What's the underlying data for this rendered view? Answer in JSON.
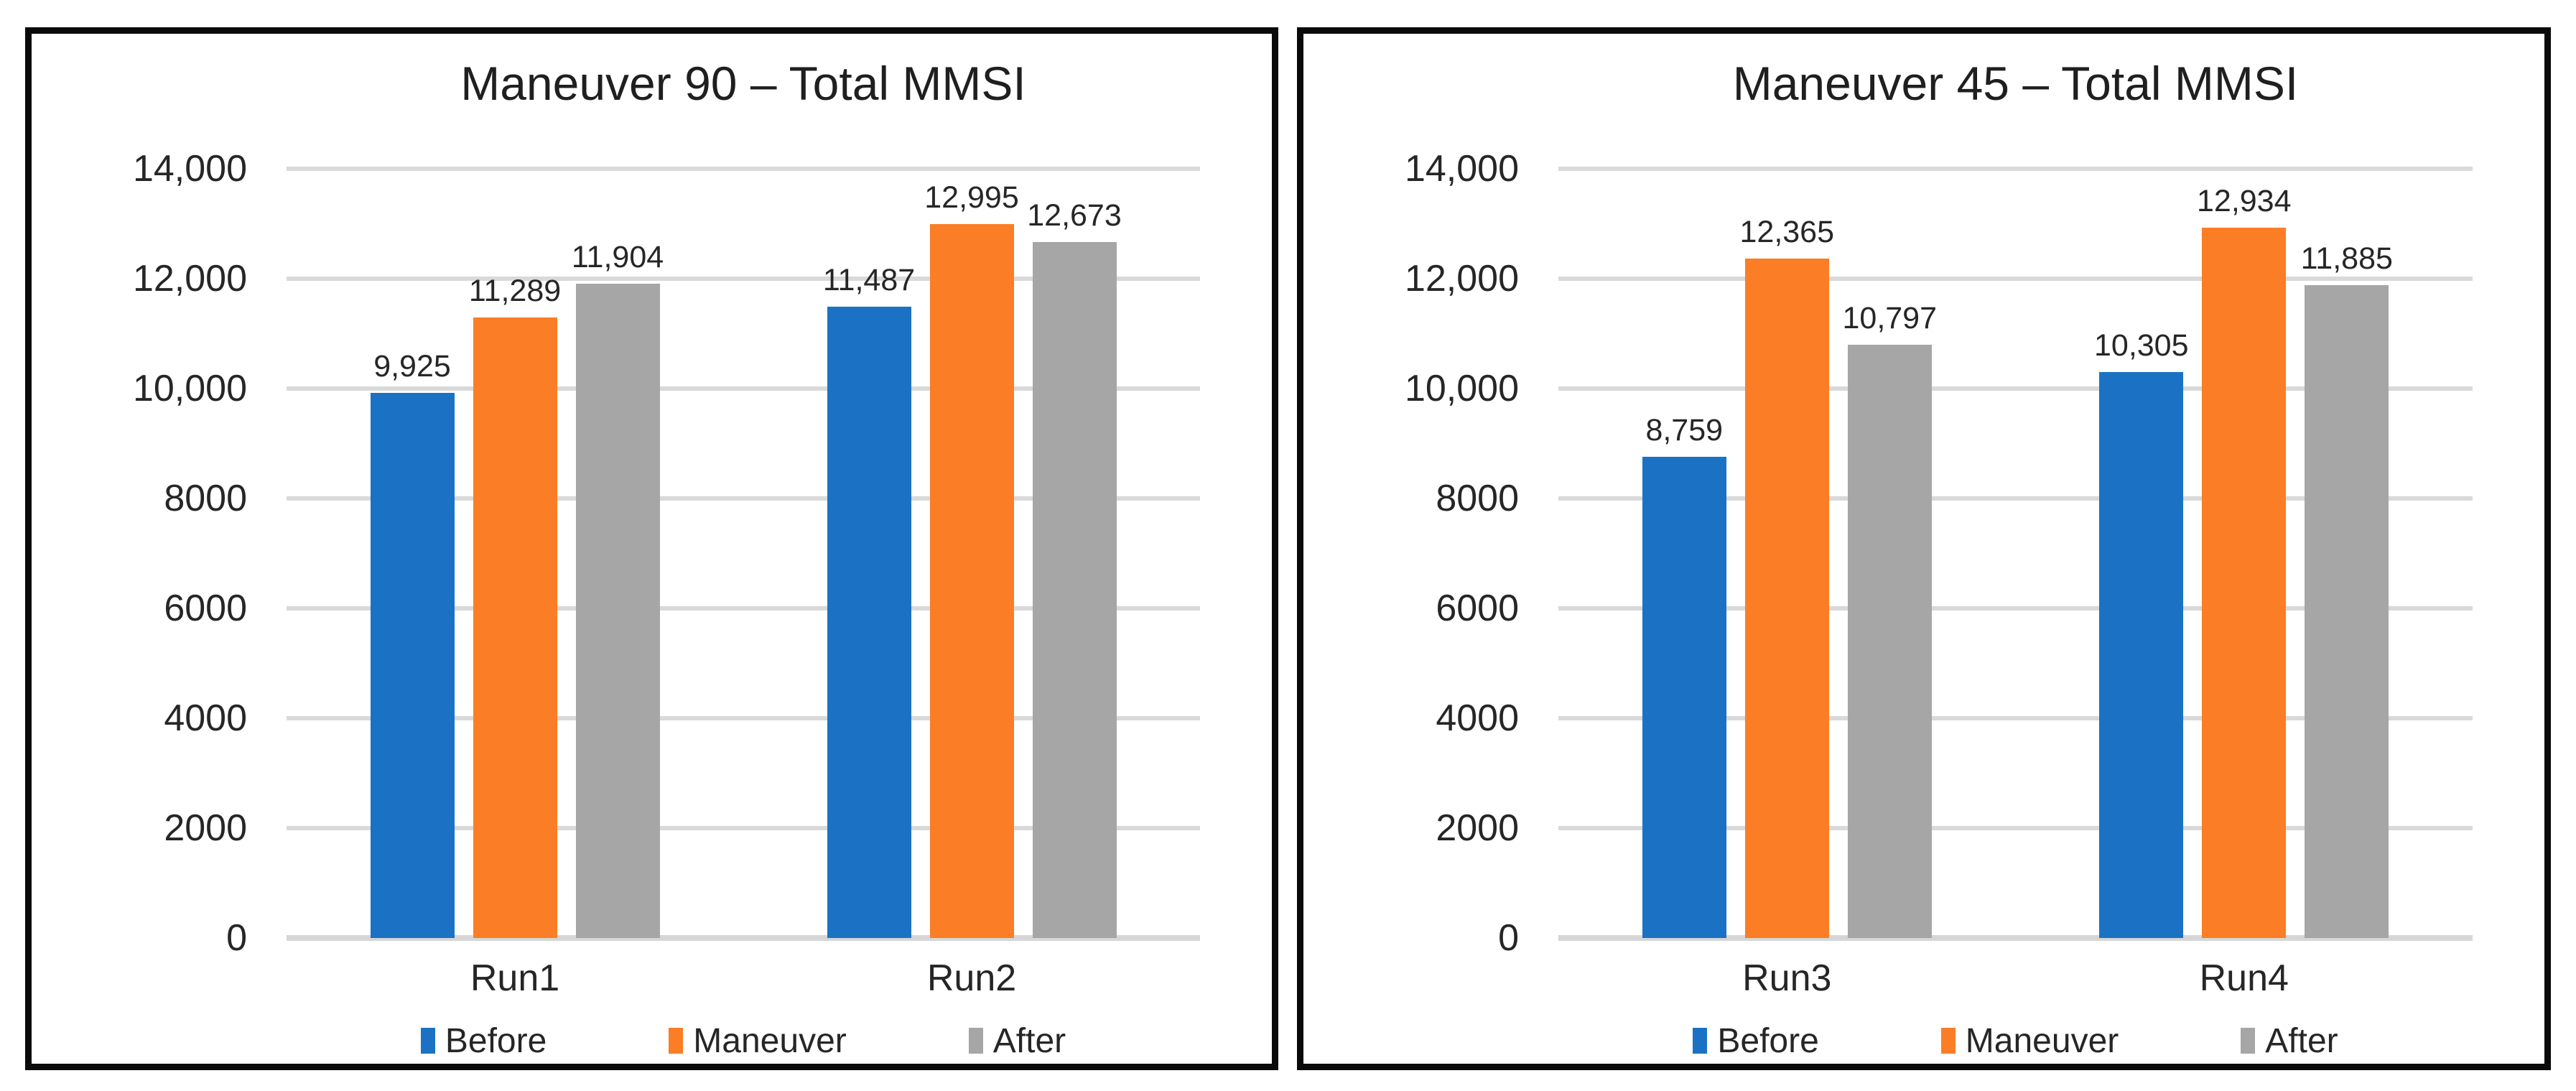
{
  "page": {
    "background": "#ffffff",
    "frame_border_color": "#0a0a0a",
    "text_color": "#262626",
    "gridline_color": "#d9d9d9"
  },
  "chart_data": [
    {
      "type": "bar",
      "title": "Maneuver 90 – Total MMSI",
      "categories": [
        "Run1",
        "Run2"
      ],
      "series": [
        {
          "name": "Before",
          "color": "#1b72c4",
          "values": [
            9925,
            11487
          ],
          "labels": [
            "9,925",
            "11,487"
          ]
        },
        {
          "name": "Maneuver",
          "color": "#fb7d25",
          "values": [
            11289,
            12995
          ],
          "labels": [
            "11,289",
            "12,995"
          ]
        },
        {
          "name": "After",
          "color": "#a6a6a6",
          "values": [
            11904,
            12673
          ],
          "labels": [
            "11,904",
            "12,673"
          ]
        }
      ],
      "ylim": [
        0,
        14000
      ],
      "yticks": [
        {
          "value": 0,
          "label": "0"
        },
        {
          "value": 2000,
          "label": "2000"
        },
        {
          "value": 4000,
          "label": "4000"
        },
        {
          "value": 6000,
          "label": "6000"
        },
        {
          "value": 8000,
          "label": "8000"
        },
        {
          "value": 10000,
          "label": "10,000"
        },
        {
          "value": 12000,
          "label": "12,000"
        },
        {
          "value": 14000,
          "label": "14,000"
        }
      ],
      "grid": true,
      "legend_position": "bottom",
      "legend_entries": [
        "Before",
        "Maneuver",
        "After"
      ]
    },
    {
      "type": "bar",
      "title": "Maneuver 45 – Total MMSI",
      "categories": [
        "Run3",
        "Run4"
      ],
      "series": [
        {
          "name": "Before",
          "color": "#1b72c4",
          "values": [
            8759,
            10305
          ],
          "labels": [
            "8,759",
            "10,305"
          ]
        },
        {
          "name": "Maneuver",
          "color": "#fb7d25",
          "values": [
            12365,
            12934
          ],
          "labels": [
            "12,365",
            "12,934"
          ]
        },
        {
          "name": "After",
          "color": "#a6a6a6",
          "values": [
            10797,
            11885
          ],
          "labels": [
            "10,797",
            "11,885"
          ]
        }
      ],
      "ylim": [
        0,
        14000
      ],
      "yticks": [
        {
          "value": 0,
          "label": "0"
        },
        {
          "value": 2000,
          "label": "2000"
        },
        {
          "value": 4000,
          "label": "4000"
        },
        {
          "value": 6000,
          "label": "6000"
        },
        {
          "value": 8000,
          "label": "8000"
        },
        {
          "value": 10000,
          "label": "10,000"
        },
        {
          "value": 12000,
          "label": "12,000"
        },
        {
          "value": 14000,
          "label": "14,000"
        }
      ],
      "grid": true,
      "legend_position": "bottom",
      "legend_entries": [
        "Before",
        "Maneuver",
        "After"
      ]
    }
  ]
}
